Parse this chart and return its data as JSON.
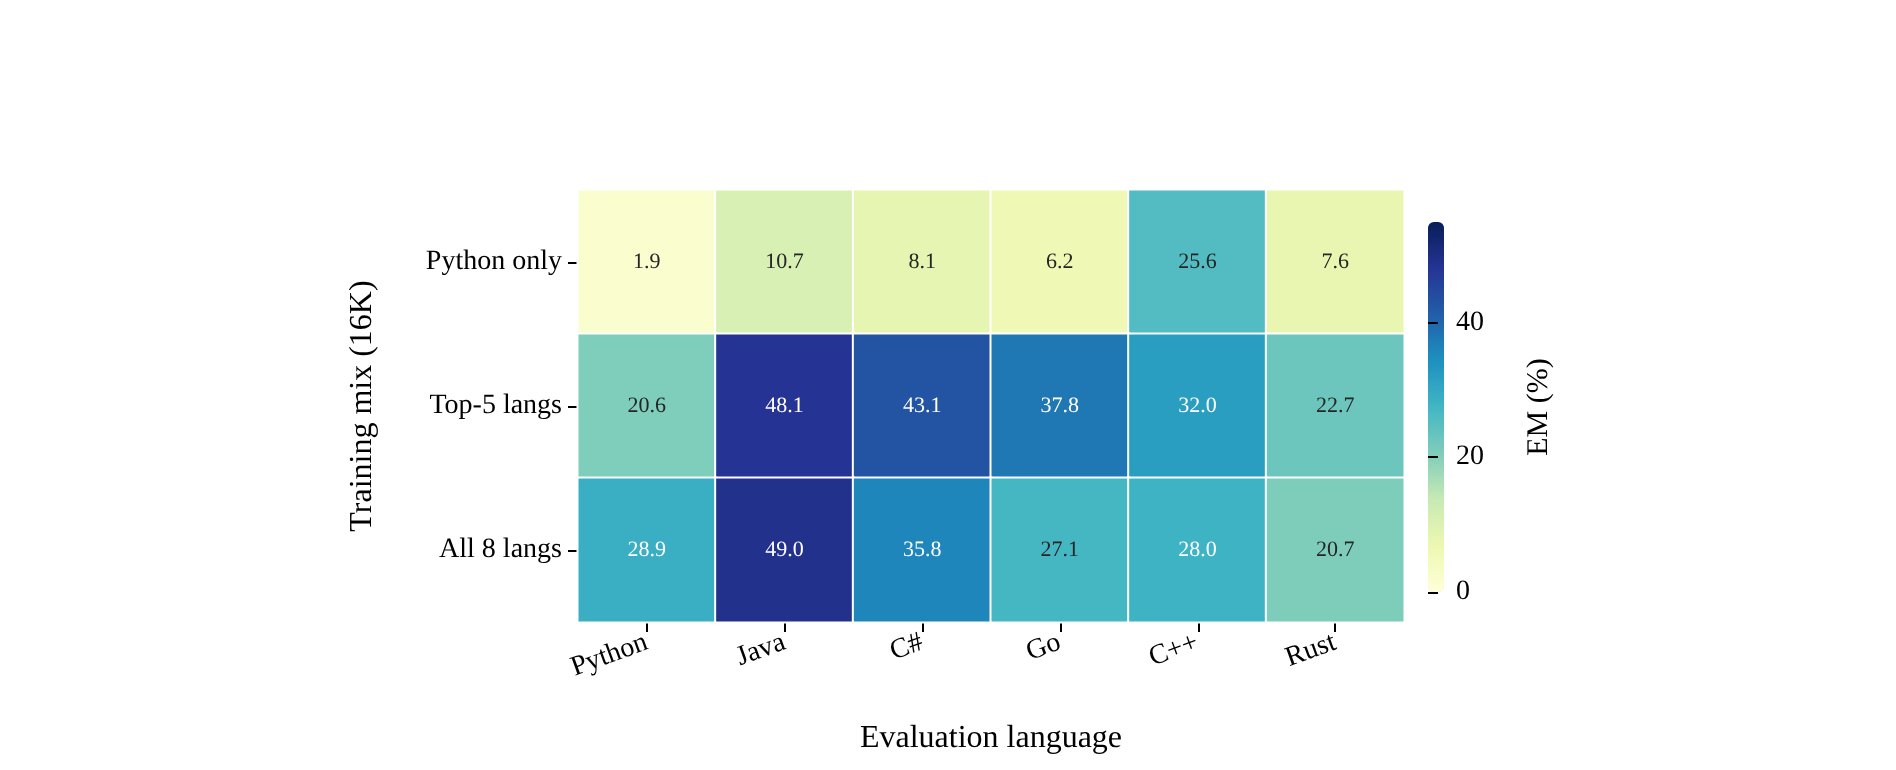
{
  "chart_data": {
    "type": "heatmap",
    "xlabel": "Evaluation language",
    "ylabel": "Training mix (16K)",
    "clabel": "EM (%)",
    "categories": [
      "Python",
      "Java",
      "C#",
      "Go",
      "C++",
      "Rust"
    ],
    "y_categories": [
      "Python only",
      "Top-5 langs",
      "All 8 langs"
    ],
    "cells": [
      [
        1.9,
        10.7,
        8.1,
        6.2,
        25.6,
        7.6
      ],
      [
        20.6,
        48.1,
        43.1,
        37.8,
        32.0,
        22.7
      ],
      [
        28.9,
        49.0,
        35.8,
        27.1,
        28.0,
        20.7
      ]
    ],
    "cell_labels": [
      [
        "1.9",
        "10.7",
        "8.1",
        "6.2",
        "25.6",
        "7.6"
      ],
      [
        "20.6",
        "48.1",
        "43.1",
        "37.8",
        "32.0",
        "22.7"
      ],
      [
        "28.9",
        "49.0",
        "35.8",
        "27.1",
        "28.0",
        "20.7"
      ]
    ],
    "clim": [
      0,
      55
    ],
    "cticks": [
      0,
      20,
      40
    ],
    "data_labels": true
  }
}
